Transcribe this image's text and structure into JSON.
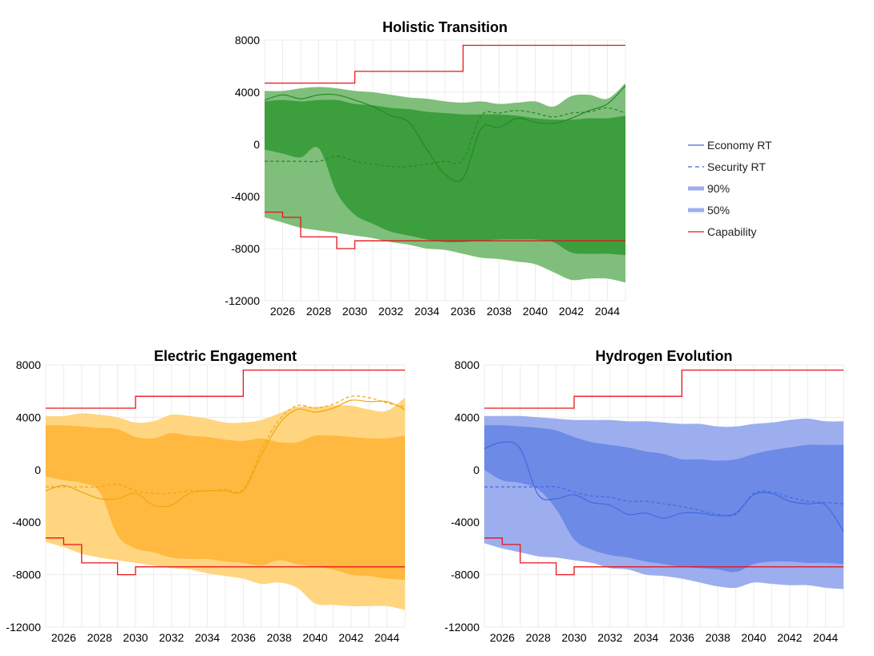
{
  "legend": [
    {
      "label": "Economy RT",
      "style": "solid",
      "color": "#4169e1"
    },
    {
      "label": "Security RT",
      "style": "dashed",
      "color": "#4169e1"
    },
    {
      "label": "90%",
      "style": "band",
      "color": "#9daeee"
    },
    {
      "label": "50%",
      "style": "band",
      "color": "#9daeee"
    },
    {
      "label": "Capability",
      "style": "solid",
      "color": "#e8141b"
    }
  ],
  "chart_data": [
    {
      "type": "area",
      "title": "Holistic Transition",
      "color": "#228b22",
      "band90_color": "#7fbf7b",
      "band50_color": "#3d9e3d",
      "x_ticks": [
        2026,
        2028,
        2030,
        2032,
        2034,
        2036,
        2038,
        2040,
        2042,
        2044
      ],
      "y_ticks": [
        8000,
        4000,
        0,
        -4000,
        -8000,
        -12000
      ],
      "xlim": [
        2025,
        2045
      ],
      "ylim": [
        -12000,
        8000
      ],
      "x": [
        2025,
        2026,
        2027,
        2028,
        2029,
        2030,
        2031,
        2032,
        2033,
        2034,
        2035,
        2036,
        2037,
        2038,
        2039,
        2040,
        2041,
        2042,
        2043,
        2044,
        2045
      ],
      "economy_rt": [
        3400,
        3800,
        3500,
        3800,
        3800,
        3400,
        2900,
        2200,
        1700,
        -400,
        -2300,
        -2600,
        1200,
        1300,
        2000,
        1700,
        1600,
        2000,
        2600,
        3100,
        4500
      ],
      "security_rt": [
        -1300,
        -1300,
        -1300,
        -1300,
        -900,
        -1300,
        -1500,
        -1700,
        -1700,
        -1500,
        -1300,
        -1200,
        2200,
        2400,
        2600,
        2400,
        2100,
        2400,
        2500,
        2800,
        2400
      ],
      "band90_upper": [
        4100,
        4100,
        4300,
        4400,
        4300,
        4100,
        4000,
        3800,
        3600,
        3500,
        3300,
        3200,
        3300,
        3100,
        3200,
        3300,
        2900,
        3700,
        3800,
        3500,
        4700
      ],
      "band90_lower": [
        -5600,
        -6000,
        -6400,
        -6600,
        -6800,
        -7000,
        -7200,
        -7500,
        -7700,
        -8000,
        -8100,
        -8400,
        -8700,
        -8800,
        -9000,
        -9200,
        -9800,
        -10400,
        -10300,
        -10300,
        -10600
      ],
      "band50_upper": [
        3300,
        3400,
        3300,
        3400,
        3400,
        3100,
        3000,
        2800,
        2700,
        2500,
        2400,
        2300,
        2300,
        2300,
        2200,
        2000,
        1900,
        1900,
        2000,
        2000,
        2200
      ],
      "band50_lower": [
        -400,
        -700,
        -1000,
        -300,
        -3700,
        -5400,
        -6100,
        -6700,
        -7000,
        -7300,
        -7500,
        -7500,
        -7400,
        -7300,
        -7300,
        -7300,
        -7500,
        -8300,
        -8400,
        -8400,
        -8500
      ],
      "capability_upper_steps": [
        [
          2025,
          4700
        ],
        [
          2030,
          5600
        ],
        [
          2036,
          7600
        ],
        [
          2045,
          7600
        ]
      ],
      "capability_lower_steps": [
        [
          2025,
          -5200
        ],
        [
          2026,
          -5600
        ],
        [
          2027,
          -7100
        ],
        [
          2029,
          -8000
        ],
        [
          2030,
          -7400
        ],
        [
          2045,
          -7400
        ]
      ]
    },
    {
      "type": "area",
      "title": "Electric Engagement",
      "color": "#f2a50e",
      "band90_color": "#ffd580",
      "band50_color": "#ffb940",
      "x_ticks": [
        2026,
        2028,
        2030,
        2032,
        2034,
        2036,
        2038,
        2040,
        2042,
        2044
      ],
      "y_ticks": [
        8000,
        4000,
        0,
        -4000,
        -8000,
        -12000
      ],
      "xlim": [
        2025,
        2045
      ],
      "ylim": [
        -12000,
        8000
      ],
      "x": [
        2025,
        2026,
        2027,
        2028,
        2029,
        2030,
        2031,
        2032,
        2033,
        2034,
        2035,
        2036,
        2037,
        2038,
        2039,
        2040,
        2041,
        2042,
        2043,
        2044,
        2045
      ],
      "economy_rt": [
        -1600,
        -1200,
        -1700,
        -2200,
        -2200,
        -1800,
        -2700,
        -2700,
        -1800,
        -1600,
        -1600,
        -1600,
        1100,
        3500,
        4600,
        4400,
        4700,
        5300,
        5200,
        5200,
        4600
      ],
      "security_rt": [
        -1300,
        -1300,
        -1300,
        -1300,
        -1100,
        -1600,
        -1800,
        -1800,
        -1600,
        -1600,
        -1500,
        -1500,
        1500,
        3800,
        4900,
        4700,
        5000,
        5600,
        5500,
        5100,
        4800
      ],
      "band90_upper": [
        4100,
        4100,
        4300,
        4200,
        4000,
        3600,
        3700,
        4200,
        4100,
        3900,
        3600,
        3600,
        3800,
        4300,
        4800,
        4800,
        4900,
        4900,
        4600,
        4500,
        5500
      ],
      "band90_lower": [
        -5500,
        -5900,
        -6400,
        -6700,
        -6900,
        -7100,
        -7300,
        -7500,
        -7600,
        -7900,
        -8100,
        -8300,
        -8700,
        -8600,
        -9000,
        -10200,
        -10300,
        -10400,
        -10400,
        -10400,
        -10700
      ],
      "band50_upper": [
        3400,
        3400,
        3300,
        3200,
        3100,
        2500,
        2400,
        2800,
        2600,
        2500,
        2300,
        2200,
        2400,
        2100,
        2100,
        2600,
        2600,
        2500,
        2400,
        2400,
        2600
      ],
      "band50_lower": [
        -500,
        -800,
        -1000,
        -1700,
        -5000,
        -6000,
        -6300,
        -6700,
        -6800,
        -6800,
        -7000,
        -7100,
        -7300,
        -6900,
        -7200,
        -7400,
        -7600,
        -8000,
        -8100,
        -8300,
        -8400
      ],
      "capability_upper_steps": [
        [
          2025,
          4700
        ],
        [
          2030,
          5600
        ],
        [
          2036,
          7600
        ],
        [
          2045,
          7600
        ]
      ],
      "capability_lower_steps": [
        [
          2025,
          -5200
        ],
        [
          2026,
          -5700
        ],
        [
          2027,
          -7100
        ],
        [
          2029,
          -8000
        ],
        [
          2030,
          -7400
        ],
        [
          2045,
          -7400
        ]
      ]
    },
    {
      "type": "area",
      "title": "Hydrogen Evolution",
      "color": "#4169e1",
      "band90_color": "#9daeee",
      "band50_color": "#6d8ae6",
      "x_ticks": [
        2026,
        2028,
        2030,
        2032,
        2034,
        2036,
        2038,
        2040,
        2042,
        2044
      ],
      "y_ticks": [
        8000,
        4000,
        0,
        -4000,
        -8000,
        -12000
      ],
      "xlim": [
        2025,
        2045
      ],
      "ylim": [
        -12000,
        8000
      ],
      "x": [
        2025,
        2026,
        2027,
        2028,
        2029,
        2030,
        2031,
        2032,
        2033,
        2034,
        2035,
        2036,
        2037,
        2038,
        2039,
        2040,
        2041,
        2042,
        2043,
        2044,
        2045
      ],
      "economy_rt": [
        1600,
        2100,
        1600,
        -1900,
        -2200,
        -1900,
        -2500,
        -2700,
        -3400,
        -3300,
        -3700,
        -3300,
        -3300,
        -3500,
        -3300,
        -1900,
        -1800,
        -2400,
        -2600,
        -2700,
        -4700
      ],
      "security_rt": [
        -1300,
        -1300,
        -1300,
        -1300,
        -1300,
        -1700,
        -2000,
        -2100,
        -2400,
        -2400,
        -2600,
        -2800,
        -3100,
        -3400,
        -3400,
        -1800,
        -1700,
        -2100,
        -2400,
        -2500,
        -2600
      ],
      "band90_upper": [
        4100,
        4100,
        4100,
        4000,
        3900,
        3800,
        3800,
        3800,
        3700,
        3700,
        3600,
        3500,
        3500,
        3300,
        3300,
        3500,
        3600,
        3800,
        3900,
        3700,
        3700
      ],
      "band90_lower": [
        -5600,
        -6000,
        -6300,
        -6600,
        -6700,
        -6900,
        -7100,
        -7500,
        -7600,
        -8000,
        -8100,
        -8300,
        -8600,
        -8900,
        -9000,
        -8600,
        -8700,
        -8800,
        -8800,
        -9000,
        -9100
      ],
      "band50_upper": [
        3400,
        3400,
        3300,
        3200,
        3000,
        2500,
        2100,
        1900,
        1700,
        1400,
        1200,
        800,
        800,
        700,
        800,
        1200,
        1500,
        1700,
        1900,
        1900,
        1900
      ],
      "band50_lower": [
        0,
        -800,
        -1000,
        -1500,
        -3000,
        -5300,
        -6100,
        -6500,
        -6700,
        -7000,
        -7200,
        -7400,
        -7500,
        -7600,
        -7800,
        -7200,
        -7000,
        -7000,
        -7100,
        -7100,
        -7200
      ],
      "capability_upper_steps": [
        [
          2025,
          4700
        ],
        [
          2030,
          5600
        ],
        [
          2036,
          7600
        ],
        [
          2045,
          7600
        ]
      ],
      "capability_lower_steps": [
        [
          2025,
          -5200
        ],
        [
          2026,
          -5700
        ],
        [
          2027,
          -7100
        ],
        [
          2029,
          -8000
        ],
        [
          2030,
          -7400
        ],
        [
          2045,
          -7400
        ]
      ]
    }
  ]
}
